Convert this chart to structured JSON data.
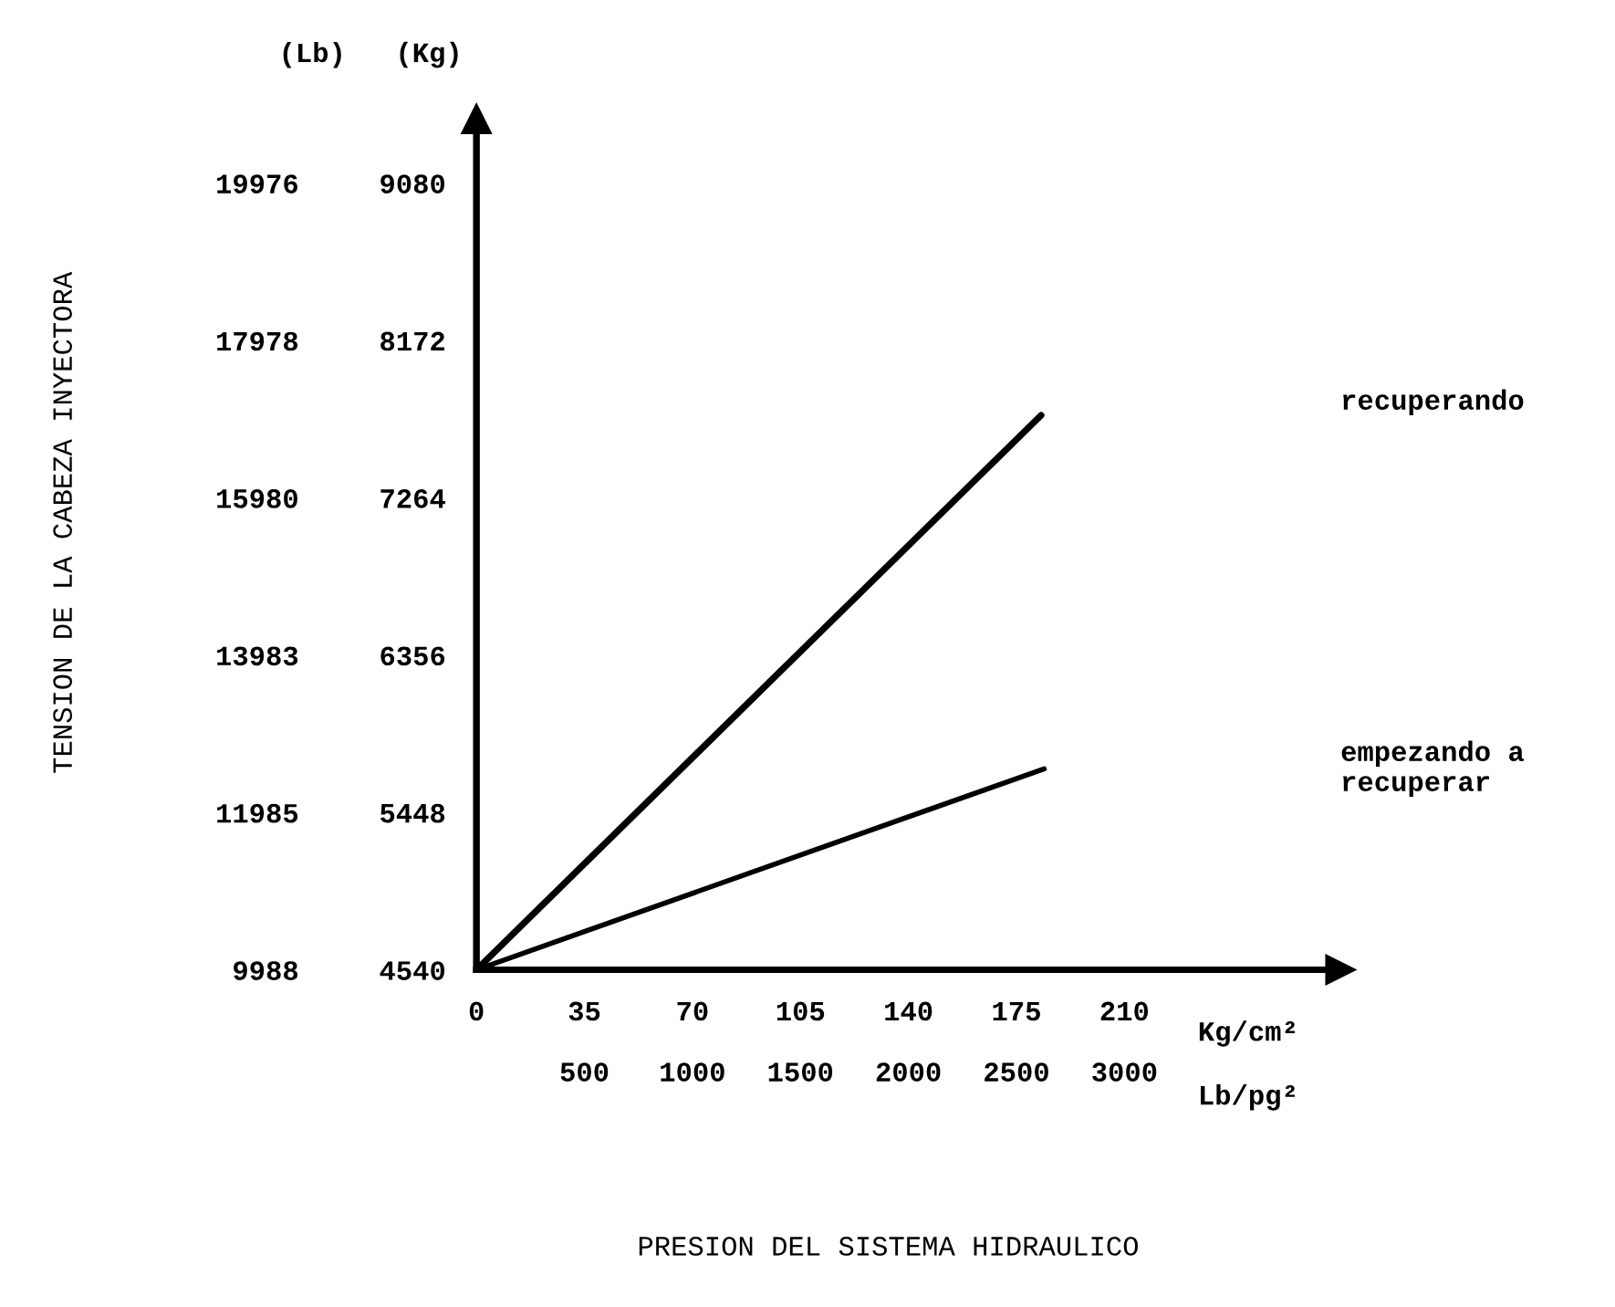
{
  "chart_data": {
    "type": "line",
    "ylabel": "(Kg)",
    "y2label": "(Lb)",
    "annotations": [
      "TENSION DE LA CABEZA INYECTORA",
      "Kg/cm²",
      "Lb/pg²",
      "PRESION DEL SISTEMA HIDRAULICO"
    ],
    "series": [
      {
        "name": "recuperando",
        "color": "#000000",
        "values": [
          4540,
          7740
        ],
        "x": [
          0,
          183
        ]
      },
      {
        "name": "empezando a\nrecuperar",
        "color": "#000000",
        "values": [
          4540,
          5700
        ],
        "x": [
          0,
          184
        ]
      }
    ],
    "xlim": [
      0,
      280
    ],
    "xticks": [
      0,
      35,
      70,
      105,
      140,
      175,
      210
    ],
    "x2lim": [
      0,
      4000
    ],
    "x2ticks": [
      500,
      1000,
      1500,
      2000,
      2500,
      3000
    ],
    "ylim": [
      4540,
      9450
    ],
    "yticks": [
      4540,
      5448,
      6356,
      7264,
      8172,
      9080
    ],
    "y2lim": [
      9988,
      20790
    ],
    "y2ticks": [
      9988,
      11985,
      13983,
      15980,
      17978,
      19976
    ],
    "grid": false,
    "legend": false,
    "marker": "none",
    "line_style": "solid"
  }
}
